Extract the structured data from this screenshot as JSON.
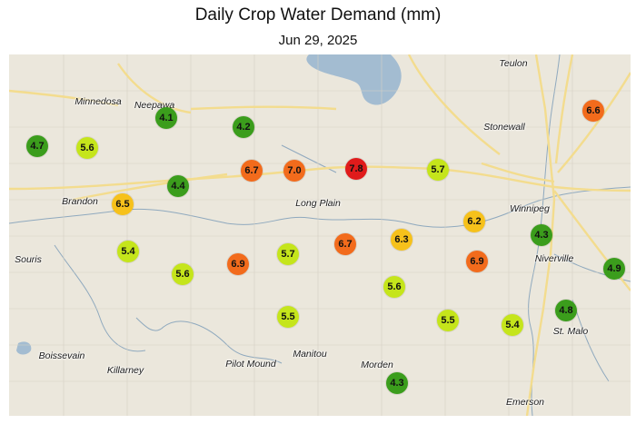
{
  "title": "Daily Crop Water Demand (mm)",
  "subtitle": "Jun 29, 2025",
  "legend_colors": {
    "low": "#3b9d1c",
    "low_mid": "#c5e51b",
    "mid": "#f6c11b",
    "high": "#f26b1c",
    "very_high": "#e01b1b"
  },
  "towns": [
    {
      "id": "teulon",
      "label": "Teulon"
    },
    {
      "id": "minnedosa",
      "label": "Minnedosa"
    },
    {
      "id": "neepawa",
      "label": "Neepawa"
    },
    {
      "id": "stonewall",
      "label": "Stonewall"
    },
    {
      "id": "winnipeg",
      "label": "Winnipeg"
    },
    {
      "id": "brandon",
      "label": "Brandon"
    },
    {
      "id": "long-plain",
      "label": "Long Plain"
    },
    {
      "id": "souris",
      "label": "Souris"
    },
    {
      "id": "niverville",
      "label": "Niverville"
    },
    {
      "id": "st-malo",
      "label": "St. Malo"
    },
    {
      "id": "boissevain",
      "label": "Boissevain"
    },
    {
      "id": "killarney",
      "label": "Killarney"
    },
    {
      "id": "pilot-mound",
      "label": "Pilot Mound"
    },
    {
      "id": "manitou",
      "label": "Manitou"
    },
    {
      "id": "morden",
      "label": "Morden"
    },
    {
      "id": "emerson",
      "label": "Emerson"
    }
  ],
  "stations": [
    {
      "value": "4.7",
      "color": "#3b9d1c"
    },
    {
      "value": "5.6",
      "color": "#c5e51b"
    },
    {
      "value": "4.1",
      "color": "#3b9d1c"
    },
    {
      "value": "4.2",
      "color": "#3b9d1c"
    },
    {
      "value": "6.7",
      "color": "#f26b1c"
    },
    {
      "value": "7.0",
      "color": "#f26b1c"
    },
    {
      "value": "7.8",
      "color": "#e01b1b"
    },
    {
      "value": "5.7",
      "color": "#c5e51b"
    },
    {
      "value": "6.6",
      "color": "#f26b1c"
    },
    {
      "value": "4.4",
      "color": "#3b9d1c"
    },
    {
      "value": "6.5",
      "color": "#f6c11b"
    },
    {
      "value": "6.2",
      "color": "#f6c11b"
    },
    {
      "value": "4.3",
      "color": "#3b9d1c"
    },
    {
      "value": "5.4",
      "color": "#c5e51b"
    },
    {
      "value": "5.6",
      "color": "#c5e51b"
    },
    {
      "value": "6.9",
      "color": "#f26b1c"
    },
    {
      "value": "5.7",
      "color": "#c5e51b"
    },
    {
      "value": "6.7",
      "color": "#f26b1c"
    },
    {
      "value": "6.3",
      "color": "#f6c11b"
    },
    {
      "value": "6.9",
      "color": "#f26b1c"
    },
    {
      "value": "4.9",
      "color": "#3b9d1c"
    },
    {
      "value": "5.6",
      "color": "#c5e51b"
    },
    {
      "value": "5.5",
      "color": "#c5e51b"
    },
    {
      "value": "5.5",
      "color": "#c5e51b"
    },
    {
      "value": "5.4",
      "color": "#c5e51b"
    },
    {
      "value": "4.8",
      "color": "#3b9d1c"
    },
    {
      "value": "4.3",
      "color": "#3b9d1c"
    }
  ]
}
